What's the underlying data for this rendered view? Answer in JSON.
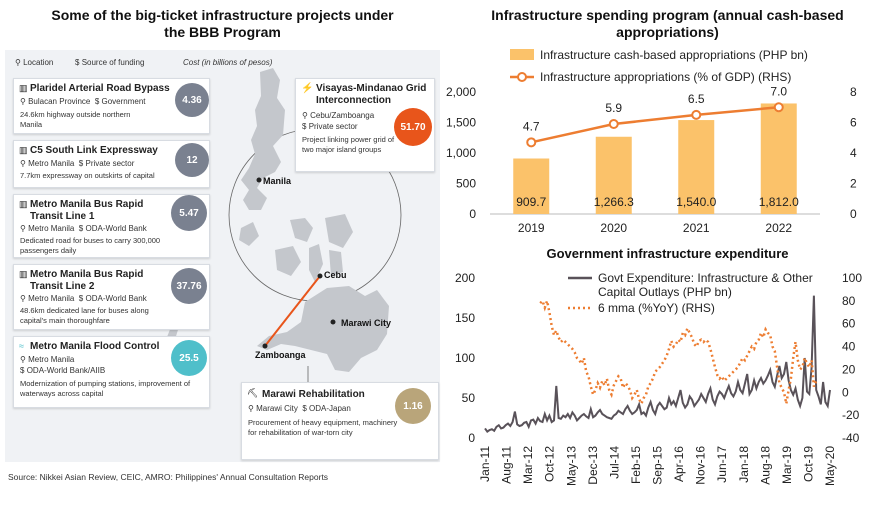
{
  "left": {
    "title": "Some of the big-ticket infrastructure projects under the BBB Program",
    "legend": {
      "location": "Location",
      "funding": "Source of funding",
      "cost": "Cost (in billions of pesos)"
    },
    "projects": [
      {
        "name": "Plaridel Arterial Road Bypass",
        "location": "Bulacan Province",
        "funding": "Government",
        "desc": "24.6km highway outside northern Manila",
        "cost": "4.36"
      },
      {
        "name": "C5 South Link Expressway",
        "location": "Metro Manila",
        "funding": "Private sector",
        "desc": "7.7km expressway on outskirts of capital",
        "cost": "12"
      },
      {
        "name": "Metro Manila Bus Rapid Transit Line 1",
        "location": "Metro Manila",
        "funding": "ODA-World Bank",
        "desc": "Dedicated road for buses to carry 300,000 passengers daily",
        "cost": "5.47"
      },
      {
        "name": "Metro Manila Bus Rapid Transit Line 2",
        "location": "Metro Manila",
        "funding": "ODA-World Bank",
        "desc": "48.6km dedicated lane for buses along capital's main thoroughfare",
        "cost": "37.76"
      },
      {
        "name": "Metro Manila Flood Control",
        "location": "Metro Manila",
        "funding": "ODA-World Bank/AIIB",
        "desc": "Modernization of pumping stations, improvement of waterways across capital",
        "cost": "25.5"
      },
      {
        "name": "Visayas-Mindanao Grid Interconnection",
        "location": "Cebu/Zamboanga",
        "funding": "Private sector",
        "desc": "Project linking power grid of two major island groups",
        "cost": "51.70"
      },
      {
        "name": "Marawi Rehabilitation",
        "location": "Marawi City",
        "funding": "ODA-Japan",
        "desc": "Procurement of heavy equipment, machinery for rehabilitation of war-torn city",
        "cost": "1.16"
      }
    ],
    "cities": {
      "manila": "Manila",
      "cebu": "Cebu",
      "marawi": "Marawi City",
      "zamboanga": "Zamboanga"
    },
    "colors": {
      "grey_circle": "#7a8190",
      "flood_circle": "#4fbfca",
      "grid_circle": "#e8551b",
      "marawi_circle": "#b9a57a",
      "land": "#c4c7cc"
    },
    "source": "Source: Nikkei Asian Review, CEIC, AMRO: Philippines' Annual Consultation Reports"
  },
  "chart_data": [
    {
      "type": "bar",
      "title": "Infrastructure spending program (annual cash-based appropriations)",
      "categories": [
        "2019",
        "2020",
        "2021",
        "2022"
      ],
      "series": [
        {
          "name": "Infrastructure cash-based appropriations (PHP bn)",
          "values": [
            909.7,
            1266.3,
            1540.0,
            1812.0
          ],
          "labels": [
            "909.7",
            "1,266.3",
            "1,540.0",
            "1,812.0"
          ],
          "color": "#fbc26a"
        },
        {
          "name": "Infrastructure appropriations (% of GDP) (RHS)",
          "type": "line",
          "axis": "right",
          "values": [
            4.7,
            5.9,
            6.5,
            7.0
          ],
          "labels": [
            "4.7",
            "5.9",
            "6.5",
            "7.0"
          ],
          "color": "#ed7d31"
        }
      ],
      "ylim": [
        0,
        2000
      ],
      "yticks": [
        "0",
        "500",
        "1,000",
        "1,500",
        "2,000"
      ],
      "y2lim": [
        0,
        8
      ],
      "y2ticks": [
        "0",
        "2",
        "4",
        "6",
        "8"
      ]
    },
    {
      "type": "line",
      "title": "Government infrastructure expenditure",
      "xticks": [
        "Jan-11",
        "Aug-11",
        "Mar-12",
        "Oct-12",
        "May-13",
        "Dec-13",
        "Jul-14",
        "Feb-15",
        "Sep-15",
        "Apr-16",
        "Nov-16",
        "Jun-17",
        "Jan-18",
        "Aug-18",
        "Mar-19",
        "Oct-19",
        "May-20"
      ],
      "ylim": [
        0,
        200
      ],
      "yticks": [
        "0",
        "50",
        "100",
        "150",
        "200"
      ],
      "y2lim": [
        -40,
        100
      ],
      "y2ticks": [
        "-40",
        "-20",
        "0",
        "20",
        "40",
        "60",
        "80",
        "100"
      ],
      "series": [
        {
          "name": "Govt Expenditure: Infrastructure & Other Capital Outlays (PHP bn)",
          "axis": "left",
          "color": "#595259",
          "values": [
            12,
            8,
            10,
            11,
            9,
            14,
            16,
            12,
            13,
            16,
            18,
            15,
            20,
            33,
            17,
            15,
            16,
            19,
            20,
            14,
            22,
            23,
            18,
            25,
            21,
            20,
            30,
            22,
            28,
            20,
            22,
            65,
            25,
            24,
            28,
            26,
            30,
            25,
            32,
            28,
            22,
            25,
            28,
            30,
            27,
            25,
            36,
            26,
            28,
            32,
            35,
            30,
            28,
            26,
            25,
            24,
            28,
            30,
            34,
            32,
            30,
            36,
            40,
            34,
            30,
            32,
            35,
            42,
            30,
            32,
            28,
            38,
            45,
            35,
            30,
            40,
            44,
            40,
            36,
            38,
            50,
            42,
            46,
            40,
            50,
            60,
            44,
            38,
            42,
            52,
            48,
            40,
            44,
            48,
            55,
            50,
            45,
            55,
            62,
            48,
            42,
            52,
            58,
            55,
            50,
            58,
            65,
            56,
            52,
            58,
            70,
            60,
            56,
            68,
            80,
            55,
            60,
            72,
            62,
            70,
            75,
            68,
            72,
            78,
            85,
            70,
            64,
            78,
            90,
            75,
            80,
            95,
            72,
            60,
            54,
            62,
            48,
            40,
            50,
            100,
            58,
            55,
            88,
            178,
            60,
            52,
            42,
            70,
            45,
            40,
            60
          ]
        },
        {
          "name": "6 mma (%YoY) (RHS)",
          "axis": "right",
          "color": "#ed7d31",
          "dashed": true,
          "values": [
            null,
            null,
            null,
            null,
            null,
            null,
            null,
            null,
            null,
            null,
            null,
            null,
            null,
            null,
            null,
            null,
            null,
            null,
            null,
            null,
            null,
            null,
            null,
            null,
            78,
            80,
            74,
            80,
            70,
            58,
            50,
            54,
            48,
            44,
            46,
            44,
            42,
            40,
            38,
            35,
            30,
            28,
            25,
            30,
            18,
            14,
            5,
            -2,
            2,
            8,
            4,
            10,
            6,
            12,
            2,
            -2,
            6,
            10,
            14,
            12,
            4,
            8,
            6,
            2,
            -5,
            -2,
            2,
            -6,
            -10,
            -5,
            -2,
            5,
            8,
            12,
            18,
            20,
            22,
            25,
            28,
            32,
            38,
            45,
            40,
            42,
            46,
            44,
            52,
            50,
            56,
            52,
            48,
            42,
            40,
            45,
            46,
            44,
            46,
            44,
            38,
            30,
            22,
            15,
            12,
            14,
            10,
            12,
            14,
            16,
            18,
            20,
            22,
            26,
            30,
            28,
            32,
            36,
            40,
            38,
            44,
            46,
            52,
            48,
            55,
            52,
            50,
            40,
            36,
            22,
            8,
            4,
            0,
            -10,
            2,
            12,
            30,
            44,
            28,
            20,
            22,
            30,
            25,
            22,
            28,
            5,
            10
          ]
        }
      ]
    }
  ]
}
